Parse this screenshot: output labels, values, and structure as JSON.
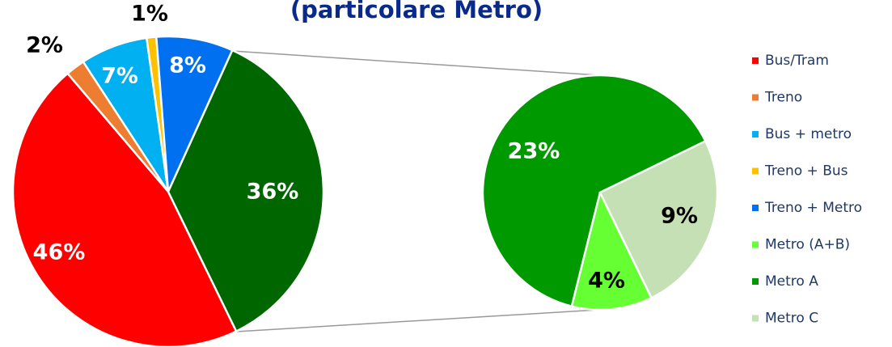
{
  "chart_data": {
    "type": "pie-of-pie",
    "title": "(particolare Metro)",
    "main": {
      "categories": [
        "Bus/Tram",
        "Treno",
        "Bus + metro",
        "Treno + Bus",
        "Treno + Metro",
        null
      ],
      "values": [
        46,
        2,
        7,
        1,
        8,
        36
      ],
      "value_labels": [
        "46%",
        "2%",
        "7%",
        "1%",
        "8%",
        "36%"
      ],
      "colors": [
        "#ff0000",
        "#ed7d31",
        "#00b0f0",
        "#ffc000",
        "#0070f0",
        "#006600"
      ]
    },
    "detail": {
      "categories": [
        "Metro (A+B)",
        "Metro A",
        "Metro C"
      ],
      "values": [
        4,
        23,
        9
      ],
      "value_labels": [
        "4%",
        "23%",
        "9%"
      ],
      "colors": [
        "#66ff33",
        "#009900",
        "#c5e0b4"
      ]
    },
    "legend": "right"
  }
}
